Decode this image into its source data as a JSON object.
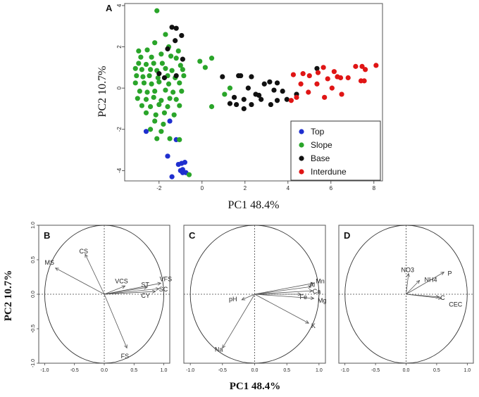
{
  "figure": {
    "xtitle_top": "PC1 48.4%",
    "ytitle_top": "PC2 10.7%",
    "xtitle_bottom": "PC1 48.4%",
    "ytitle_bottom": "PC2 10.7%"
  },
  "chart_data": [
    {
      "id": "A",
      "type": "scatter",
      "panel_label": "A",
      "xlim": [
        -3.6,
        8.4
      ],
      "ylim": [
        -4.5,
        4.1
      ],
      "x_ticks": [
        -2,
        0,
        2,
        4,
        6,
        8
      ],
      "y_ticks": [
        -4,
        -2,
        0,
        2,
        4
      ],
      "legend": {
        "position": "bottom-right",
        "entries": [
          {
            "label": "Top",
            "color": "#1f2fcf"
          },
          {
            "label": "Slope",
            "color": "#2aa52a"
          },
          {
            "label": "Base",
            "color": "#111111"
          },
          {
            "label": "Interdune",
            "color": "#e01515"
          }
        ]
      },
      "series": [
        {
          "name": "Top",
          "color": "#1f2fcf",
          "points": [
            [
              -2.6,
              -2.1
            ],
            [
              -1.5,
              -1.6
            ],
            [
              -1.2,
              -2.5
            ],
            [
              -1.6,
              -3.3
            ],
            [
              -1.4,
              -4.3
            ],
            [
              -1.1,
              -3.7
            ],
            [
              -0.95,
              -3.65
            ],
            [
              -0.9,
              -3.95
            ],
            [
              -0.9,
              -4.1
            ],
            [
              -1.0,
              -4.0
            ],
            [
              -0.75,
              -4.1
            ],
            [
              -0.8,
              -3.6
            ]
          ]
        },
        {
          "name": "Slope",
          "color": "#2aa52a",
          "points": [
            [
              -2.1,
              3.75
            ],
            [
              -1.7,
              2.6
            ],
            [
              -2.2,
              2.2
            ],
            [
              -1.55,
              2.0
            ],
            [
              -1.1,
              1.8
            ],
            [
              -2.95,
              1.8
            ],
            [
              -2.55,
              1.85
            ],
            [
              -2.85,
              1.5
            ],
            [
              -2.35,
              1.5
            ],
            [
              -1.9,
              1.65
            ],
            [
              -1.45,
              1.55
            ],
            [
              -1.2,
              1.45
            ],
            [
              -2.95,
              1.2
            ],
            [
              -2.6,
              1.15
            ],
            [
              -2.25,
              1.2
            ],
            [
              -1.85,
              1.2
            ],
            [
              -1.0,
              1.1
            ],
            [
              -3.1,
              0.95
            ],
            [
              -2.8,
              0.9
            ],
            [
              -2.4,
              0.9
            ],
            [
              -2.1,
              0.85
            ],
            [
              -1.7,
              0.95
            ],
            [
              -1.4,
              0.85
            ],
            [
              -0.9,
              0.9
            ],
            [
              -3.05,
              0.6
            ],
            [
              -2.75,
              0.55
            ],
            [
              -2.45,
              0.6
            ],
            [
              -2.05,
              0.5
            ],
            [
              -1.6,
              0.6
            ],
            [
              -1.25,
              0.5
            ],
            [
              -0.85,
              0.6
            ],
            [
              -3.1,
              0.25
            ],
            [
              -2.7,
              0.25
            ],
            [
              -2.35,
              0.2
            ],
            [
              -2.0,
              0.3
            ],
            [
              -1.55,
              0.2
            ],
            [
              -1.05,
              0.25
            ],
            [
              -2.9,
              -0.15
            ],
            [
              -2.55,
              -0.2
            ],
            [
              -2.2,
              -0.15
            ],
            [
              -1.7,
              -0.1
            ],
            [
              -1.35,
              -0.2
            ],
            [
              -0.95,
              -0.15
            ],
            [
              -3.0,
              -0.5
            ],
            [
              -2.6,
              -0.55
            ],
            [
              -2.25,
              -0.45
            ],
            [
              -1.9,
              -0.6
            ],
            [
              -1.5,
              -0.5
            ],
            [
              -1.2,
              -0.55
            ],
            [
              -2.8,
              -0.85
            ],
            [
              -2.4,
              -0.9
            ],
            [
              -2.0,
              -0.8
            ],
            [
              -1.6,
              -0.9
            ],
            [
              -1.05,
              -0.85
            ],
            [
              -2.6,
              -1.2
            ],
            [
              -2.15,
              -1.3
            ],
            [
              -1.75,
              -1.2
            ],
            [
              -1.3,
              -1.3
            ],
            [
              -2.2,
              -1.6
            ],
            [
              -1.8,
              -1.75
            ],
            [
              -2.4,
              -2.0
            ],
            [
              -1.9,
              -2.1
            ],
            [
              -1.5,
              -2.45
            ],
            [
              -1.05,
              -2.5
            ],
            [
              -2.1,
              -2.45
            ],
            [
              -0.6,
              -4.2
            ],
            [
              0.15,
              1.0
            ],
            [
              0.45,
              1.45
            ],
            [
              1.3,
              0.0
            ],
            [
              1.05,
              -0.3
            ],
            [
              0.45,
              -0.9
            ],
            [
              -0.1,
              1.3
            ]
          ]
        },
        {
          "name": "Base",
          "color": "#111111",
          "points": [
            [
              -1.4,
              2.95
            ],
            [
              -1.2,
              2.9
            ],
            [
              -0.95,
              2.55
            ],
            [
              -1.25,
              2.3
            ],
            [
              -1.6,
              1.9
            ],
            [
              -0.9,
              1.4
            ],
            [
              -2.0,
              0.7
            ],
            [
              -1.75,
              0.5
            ],
            [
              -1.2,
              0.6
            ],
            [
              0.95,
              0.55
            ],
            [
              1.7,
              0.6
            ],
            [
              1.8,
              0.6
            ],
            [
              2.3,
              0.55
            ],
            [
              2.15,
              0.0
            ],
            [
              2.5,
              -0.3
            ],
            [
              2.9,
              0.2
            ],
            [
              3.15,
              0.3
            ],
            [
              3.35,
              -0.1
            ],
            [
              3.75,
              -0.15
            ],
            [
              3.5,
              0.25
            ],
            [
              1.95,
              -0.55
            ],
            [
              2.3,
              -0.8
            ],
            [
              2.75,
              -0.55
            ],
            [
              3.2,
              -0.8
            ],
            [
              3.5,
              -0.6
            ],
            [
              1.3,
              -0.75
            ],
            [
              1.6,
              -0.8
            ],
            [
              1.95,
              -1.0
            ],
            [
              1.5,
              -0.45
            ],
            [
              2.65,
              -0.35
            ],
            [
              3.95,
              -0.55
            ],
            [
              4.4,
              -0.3
            ],
            [
              5.35,
              0.95
            ]
          ]
        },
        {
          "name": "Interdune",
          "color": "#e01515",
          "points": [
            [
              4.25,
              0.65
            ],
            [
              4.7,
              0.7
            ],
            [
              5.0,
              0.6
            ],
            [
              5.4,
              0.75
            ],
            [
              5.65,
              1.0
            ],
            [
              6.15,
              0.8
            ],
            [
              5.85,
              0.45
            ],
            [
              6.3,
              0.55
            ],
            [
              6.45,
              0.5
            ],
            [
              6.8,
              0.5
            ],
            [
              7.15,
              1.05
            ],
            [
              7.45,
              1.05
            ],
            [
              7.6,
              0.9
            ],
            [
              8.1,
              1.1
            ],
            [
              7.4,
              0.35
            ],
            [
              7.55,
              0.35
            ],
            [
              4.6,
              0.2
            ],
            [
              5.35,
              0.2
            ],
            [
              6.05,
              0.0
            ],
            [
              4.95,
              -0.2
            ],
            [
              6.5,
              -0.3
            ],
            [
              5.7,
              -0.45
            ],
            [
              4.4,
              -0.45
            ],
            [
              4.15,
              -0.6
            ]
          ]
        }
      ]
    },
    {
      "id": "B",
      "type": "pca-loadings",
      "panel_label": "B",
      "xlim": [
        -1.1,
        1.1
      ],
      "ylim": [
        -1.0,
        1.0
      ],
      "x_ticks": [
        -1.0,
        -0.5,
        0.0,
        0.5,
        1.0
      ],
      "x_tick_labels": [
        "-1.0",
        "-0.5",
        "0.0",
        "0.5",
        "1.0"
      ],
      "y_ticks": [
        -1.0,
        -0.5,
        0.0,
        0.5,
        1.0
      ],
      "y_tick_labels": [
        "-1.0",
        "-0.5",
        "0.0",
        "0.5",
        "1.0"
      ],
      "vectors": [
        {
          "label": "CS",
          "x": -0.32,
          "y": 0.58,
          "lx": -0.42,
          "ly": 0.62
        },
        {
          "label": "MS",
          "x": -0.82,
          "y": 0.38,
          "lx": -1.0,
          "ly": 0.46
        },
        {
          "label": "VCS",
          "x": 0.35,
          "y": 0.12,
          "lx": 0.18,
          "ly": 0.19
        },
        {
          "label": "ST",
          "x": 0.72,
          "y": 0.1,
          "lx": 0.62,
          "ly": 0.14
        },
        {
          "label": "VFS",
          "x": 0.95,
          "y": 0.16,
          "lx": 0.93,
          "ly": 0.22
        },
        {
          "label": "SC",
          "x": 0.92,
          "y": 0.08,
          "lx": 0.92,
          "ly": 0.07
        },
        {
          "label": "CY",
          "x": 0.86,
          "y": 0.04,
          "lx": 0.62,
          "ly": -0.02
        },
        {
          "label": "FS",
          "x": 0.38,
          "y": -0.78,
          "lx": 0.28,
          "ly": -0.9
        }
      ]
    },
    {
      "id": "C",
      "type": "pca-loadings",
      "panel_label": "C",
      "xlim": [
        -1.1,
        1.1
      ],
      "ylim": [
        -1.0,
        1.0
      ],
      "x_ticks": [
        -1.0,
        -0.5,
        0.0,
        0.5,
        1.0
      ],
      "x_tick_labels": [
        "-1.0",
        "-0.5",
        "0.0",
        "0.5",
        "1.0"
      ],
      "vectors": [
        {
          "label": "pH",
          "x": -0.2,
          "y": -0.08,
          "lx": -0.4,
          "ly": -0.07
        },
        {
          "label": "Na",
          "x": -0.5,
          "y": -0.78,
          "lx": -0.62,
          "ly": -0.8
        },
        {
          "label": "Mn",
          "x": 0.92,
          "y": 0.16,
          "lx": 0.95,
          "ly": 0.19
        },
        {
          "label": "Al",
          "x": 0.88,
          "y": 0.11,
          "lx": 0.85,
          "ly": 0.14
        },
        {
          "label": "Ca",
          "x": 0.9,
          "y": 0.05,
          "lx": 0.9,
          "ly": 0.04
        },
        {
          "label": "Fe",
          "x": 0.72,
          "y": 0.0,
          "lx": 0.7,
          "ly": -0.04
        },
        {
          "label": "Mg",
          "x": 0.92,
          "y": -0.06,
          "lx": 0.98,
          "ly": -0.09
        },
        {
          "label": "K",
          "x": 0.84,
          "y": -0.42,
          "lx": 0.88,
          "ly": -0.46
        }
      ]
    },
    {
      "id": "D",
      "type": "pca-loadings",
      "panel_label": "D",
      "xlim": [
        -1.1,
        1.1
      ],
      "ylim": [
        -1.0,
        1.0
      ],
      "x_ticks": [
        -1.0,
        -0.5,
        0.0,
        0.5,
        1.0
      ],
      "x_tick_labels": [
        "-1.0",
        "-0.5",
        "0.0",
        "0.5",
        "1.0"
      ],
      "vectors": [
        {
          "label": "NO3",
          "x": 0.04,
          "y": 0.3,
          "lx": -0.08,
          "ly": 0.35
        },
        {
          "label": "NH4",
          "x": 0.22,
          "y": 0.2,
          "lx": 0.3,
          "ly": 0.21
        },
        {
          "label": "P",
          "x": 0.62,
          "y": 0.32,
          "lx": 0.68,
          "ly": 0.3
        },
        {
          "label": "C",
          "x": 0.54,
          "y": -0.04,
          "lx": 0.56,
          "ly": -0.05
        },
        {
          "label": "CEC",
          "x": 0.58,
          "y": -0.06,
          "lx": 0.7,
          "ly": -0.15
        }
      ]
    }
  ]
}
